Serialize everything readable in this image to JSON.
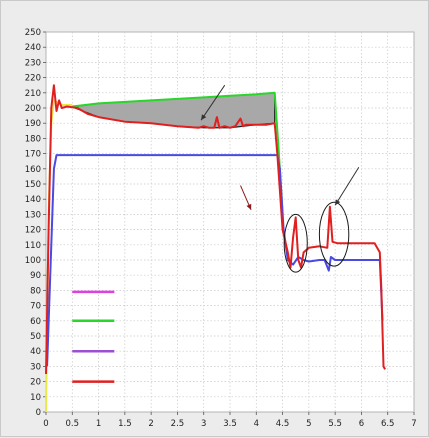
{
  "chart_data": {
    "type": "line",
    "title": "",
    "xlabel": "",
    "ylabel": "",
    "xlim": [
      0,
      7
    ],
    "ylim": [
      0,
      250
    ],
    "x_ticks": [
      "0",
      "0.5",
      "1",
      "1.5",
      "2",
      "2.5",
      "3",
      "3.5",
      "4",
      "4.5",
      "5",
      "5.5",
      "6",
      "6.5",
      "7"
    ],
    "y_ticks": [
      "0",
      "10",
      "20",
      "30",
      "40",
      "50",
      "60",
      "70",
      "80",
      "90",
      "100",
      "110",
      "120",
      "130",
      "140",
      "150",
      "160",
      "170",
      "180",
      "190",
      "200",
      "210",
      "220",
      "230",
      "240",
      "250"
    ],
    "grid": true,
    "legend_position": "bottom-left",
    "series": [
      {
        "color": "#e8e84a",
        "points": [
          [
            0.0,
            0
          ],
          [
            0.05,
            130
          ],
          [
            0.1,
            190
          ],
          [
            0.15,
            205
          ],
          [
            0.3,
            202
          ],
          [
            0.5,
            202
          ]
        ]
      },
      {
        "color": "#2ad62a",
        "points": [
          [
            0.5,
            201
          ],
          [
            1.0,
            203
          ],
          [
            1.5,
            204
          ],
          [
            2.0,
            205
          ],
          [
            2.5,
            206
          ],
          [
            3.0,
            207
          ],
          [
            3.5,
            208
          ],
          [
            4.0,
            209
          ],
          [
            4.35,
            210
          ],
          [
            4.42,
            175
          ],
          [
            4.5,
            130
          ]
        ]
      },
      {
        "color": "#4a4ae0",
        "points": [
          [
            0.02,
            30
          ],
          [
            0.1,
            110
          ],
          [
            0.15,
            160
          ],
          [
            0.2,
            169
          ],
          [
            0.5,
            169
          ],
          [
            1.0,
            169
          ],
          [
            2.0,
            169
          ],
          [
            3.0,
            169
          ],
          [
            4.0,
            169
          ],
          [
            4.4,
            169
          ],
          [
            4.45,
            160
          ],
          [
            4.52,
            120
          ],
          [
            4.6,
            100
          ],
          [
            4.7,
            97
          ],
          [
            4.8,
            102
          ],
          [
            4.9,
            100
          ],
          [
            5.0,
            99
          ],
          [
            5.2,
            100
          ],
          [
            5.3,
            100
          ],
          [
            5.38,
            93
          ],
          [
            5.42,
            102
          ],
          [
            5.5,
            100
          ],
          [
            6.0,
            100
          ],
          [
            6.35,
            100
          ],
          [
            6.4,
            60
          ]
        ]
      },
      {
        "color": "#e02020",
        "points": [
          [
            0.0,
            25
          ],
          [
            0.05,
            120
          ],
          [
            0.1,
            200
          ],
          [
            0.15,
            215
          ],
          [
            0.2,
            198
          ],
          [
            0.25,
            205
          ],
          [
            0.3,
            200
          ],
          [
            0.4,
            201
          ],
          [
            0.6,
            200
          ],
          [
            0.8,
            196
          ],
          [
            1.0,
            194
          ],
          [
            1.5,
            191
          ],
          [
            2.0,
            190
          ],
          [
            2.5,
            188
          ],
          [
            2.9,
            187
          ],
          [
            3.0,
            188
          ],
          [
            3.1,
            187
          ],
          [
            3.2,
            187
          ],
          [
            3.25,
            194
          ],
          [
            3.3,
            187
          ],
          [
            3.4,
            188
          ],
          [
            3.5,
            187
          ],
          [
            3.6,
            188
          ],
          [
            3.7,
            193
          ],
          [
            3.75,
            188
          ],
          [
            3.8,
            189
          ],
          [
            4.0,
            189
          ],
          [
            4.2,
            189
          ],
          [
            4.35,
            190
          ],
          [
            4.4,
            170
          ],
          [
            4.5,
            120
          ],
          [
            4.6,
            105
          ],
          [
            4.65,
            95
          ],
          [
            4.7,
            115
          ],
          [
            4.75,
            128
          ],
          [
            4.8,
            100
          ],
          [
            4.85,
            95
          ],
          [
            4.9,
            105
          ],
          [
            5.0,
            108
          ],
          [
            5.2,
            109
          ],
          [
            5.35,
            108
          ],
          [
            5.4,
            135
          ],
          [
            5.45,
            112
          ],
          [
            5.55,
            111
          ],
          [
            6.0,
            111
          ],
          [
            6.25,
            111
          ],
          [
            6.35,
            105
          ],
          [
            6.38,
            80
          ],
          [
            6.42,
            30
          ],
          [
            6.45,
            28
          ]
        ]
      }
    ],
    "shaded_region": {
      "color": "#a8a8a8",
      "x": [
        0.55,
        1.0,
        1.5,
        2.0,
        2.5,
        3.0,
        3.5,
        4.0,
        4.35
      ],
      "upper": [
        201,
        203,
        204,
        205,
        206,
        207,
        208,
        209,
        210
      ],
      "lower": [
        200,
        194,
        191,
        190,
        188,
        187,
        187,
        189,
        190
      ]
    },
    "ellipses": [
      {
        "center": [
          4.75,
          111
        ],
        "semi_axes": [
          0.22,
          19
        ]
      },
      {
        "center": [
          5.48,
          117
        ],
        "semi_axes": [
          0.28,
          21
        ]
      }
    ],
    "arrows": [
      {
        "from": [
          3.4,
          215
        ],
        "to": [
          2.95,
          192
        ],
        "color": "#333333"
      },
      {
        "from": [
          3.7,
          149
        ],
        "to": [
          3.9,
          133
        ],
        "color": "#8a1a1a"
      },
      {
        "from": [
          5.95,
          161
        ],
        "to": [
          5.5,
          136
        ],
        "color": "#333333"
      }
    ],
    "legend": [
      {
        "color": "#e040e0",
        "y": 79
      },
      {
        "color": "#2ad62a",
        "y": 60
      },
      {
        "color": "#9a50d0",
        "y": 40
      },
      {
        "color": "#e02020",
        "y": 20
      }
    ]
  }
}
